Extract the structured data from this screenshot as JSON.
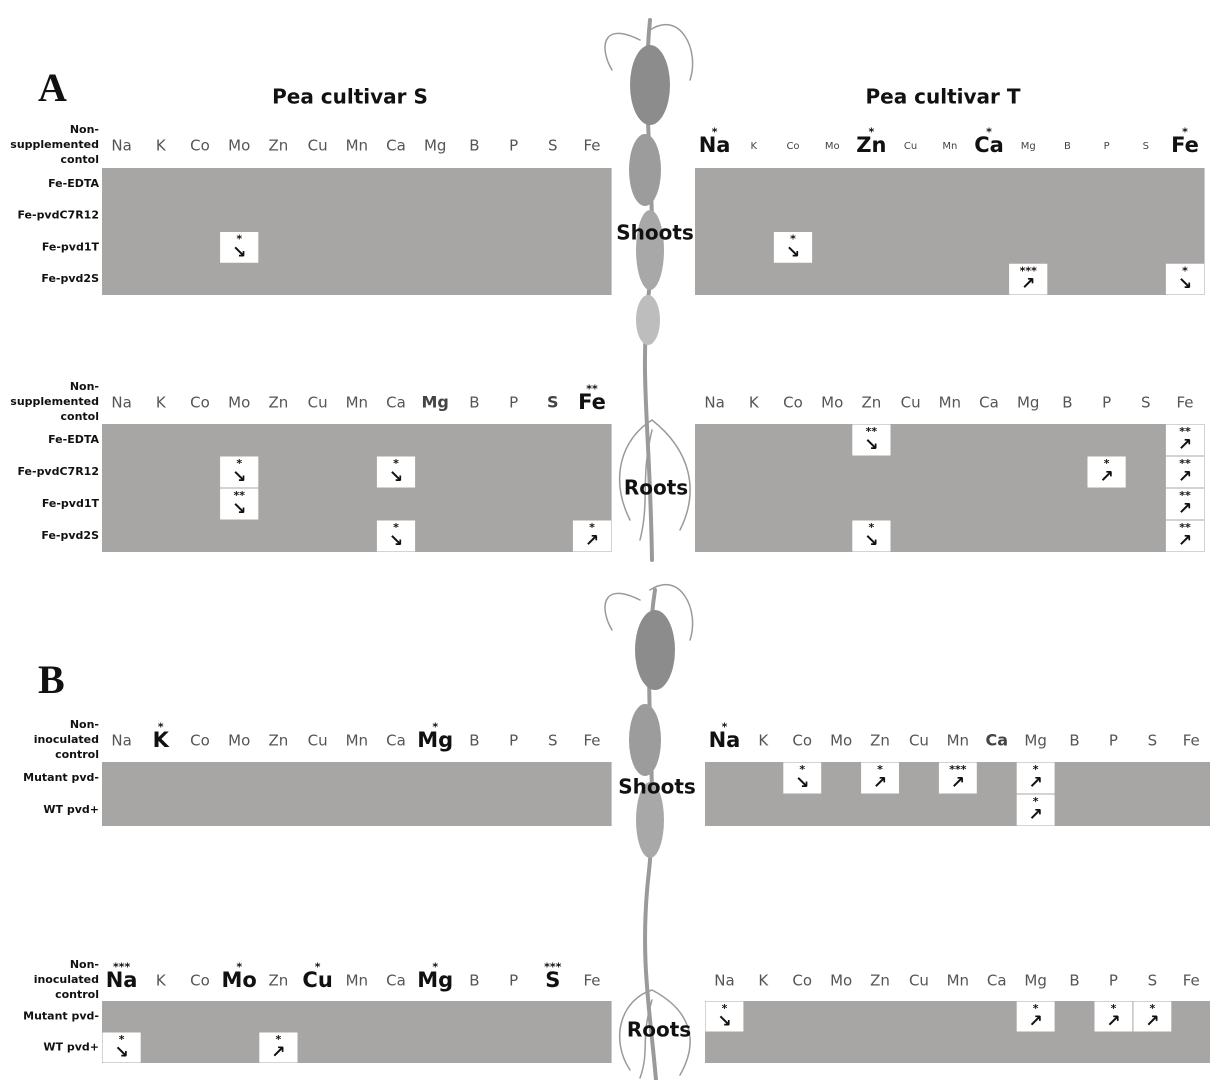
{
  "panels": [
    {
      "letter": "A",
      "titles": [
        "Pea cultivar S",
        "Pea cultivar T"
      ],
      "blocks": [
        {
          "organ": "Shoots",
          "control": [
            "Non-",
            "supplemented",
            "contol"
          ],
          "rows": [
            "Fe-EDTA",
            "Fe-pvdC7R12",
            "Fe-pvd1T",
            "Fe-pvd2S"
          ],
          "grids": [
            {
              "elements": [
                "Na",
                "K",
                "Co",
                "Mo",
                "Zn",
                "Cu",
                "Mn",
                "Ca",
                "Mg",
                "B",
                "P",
                "S",
                "Fe"
              ],
              "cells": [
                {
                  "row": 2,
                  "col": 3,
                  "arrow": "↘",
                  "stars": "*"
                }
              ]
            },
            {
              "elements": [
                {
                  "name": "Na",
                  "stars": "*",
                  "style": "large"
                },
                {
                  "name": "K",
                  "style": "small"
                },
                {
                  "name": "Co",
                  "style": "small"
                },
                {
                  "name": "Mo",
                  "style": "small"
                },
                {
                  "name": "Zn",
                  "stars": "*",
                  "style": "large"
                },
                {
                  "name": "Cu",
                  "style": "small"
                },
                {
                  "name": "Mn",
                  "style": "small"
                },
                {
                  "name": "Ca",
                  "stars": "*",
                  "style": "large"
                },
                {
                  "name": "Mg",
                  "style": "small"
                },
                {
                  "name": "B",
                  "style": "small"
                },
                {
                  "name": "P",
                  "style": "small"
                },
                {
                  "name": "S",
                  "style": "small"
                },
                {
                  "name": "Fe",
                  "stars": "*",
                  "style": "large"
                }
              ],
              "cells": [
                {
                  "row": 2,
                  "col": 2,
                  "arrow": "↘",
                  "stars": "*"
                },
                {
                  "row": 3,
                  "col": 8,
                  "arrow": "↗",
                  "stars": "***"
                },
                {
                  "row": 3,
                  "col": 12,
                  "arrow": "↘",
                  "stars": "*"
                }
              ]
            }
          ]
        },
        {
          "organ": "Roots",
          "control": [
            "Non-",
            "supplemented",
            "contol"
          ],
          "rows": [
            "Fe-EDTA",
            "Fe-pvdC7R12",
            "Fe-pvd1T",
            "Fe-pvd2S"
          ],
          "grids": [
            {
              "elements": [
                "Na",
                "K",
                "Co",
                "Mo",
                "Zn",
                "Cu",
                "Mn",
                "Ca",
                {
                  "name": "Mg",
                  "style": "bold"
                },
                "B",
                "P",
                {
                  "name": "S",
                  "style": "bold"
                },
                {
                  "name": "Fe",
                  "stars": "**",
                  "style": "large"
                }
              ],
              "cells": [
                {
                  "row": 1,
                  "col": 3,
                  "arrow": "↘",
                  "stars": "*"
                },
                {
                  "row": 1,
                  "col": 7,
                  "arrow": "↘",
                  "stars": "*"
                },
                {
                  "row": 2,
                  "col": 3,
                  "arrow": "↘",
                  "stars": "**"
                },
                {
                  "row": 3,
                  "col": 7,
                  "arrow": "↘",
                  "stars": "*"
                },
                {
                  "row": 3,
                  "col": 12,
                  "arrow": "↗",
                  "stars": "*"
                }
              ]
            },
            {
              "elements": [
                "Na",
                "K",
                "Co",
                "Mo",
                "Zn",
                "Cu",
                "Mn",
                "Ca",
                "Mg",
                "B",
                "P",
                "S",
                "Fe"
              ],
              "cells": [
                {
                  "row": 0,
                  "col": 4,
                  "arrow": "↘",
                  "stars": "**"
                },
                {
                  "row": 0,
                  "col": 12,
                  "arrow": "↗",
                  "stars": "**"
                },
                {
                  "row": 1,
                  "col": 10,
                  "arrow": "↗",
                  "stars": "*"
                },
                {
                  "row": 1,
                  "col": 12,
                  "arrow": "↗",
                  "stars": "**"
                },
                {
                  "row": 2,
                  "col": 12,
                  "arrow": "↗",
                  "stars": "**"
                },
                {
                  "row": 3,
                  "col": 4,
                  "arrow": "↘",
                  "stars": "*"
                },
                {
                  "row": 3,
                  "col": 12,
                  "arrow": "↗",
                  "stars": "**"
                }
              ]
            }
          ]
        }
      ]
    },
    {
      "letter": "B",
      "blocks": [
        {
          "organ": "Shoots",
          "control": [
            "Non-",
            "inoculated",
            "control"
          ],
          "rows": [
            "Mutant pvd-",
            "WT pvd+"
          ],
          "grids": [
            {
              "elements": [
                "Na",
                {
                  "name": "K",
                  "stars": "*",
                  "style": "large"
                },
                "Co",
                "Mo",
                "Zn",
                "Cu",
                "Mn",
                "Ca",
                {
                  "name": "Mg",
                  "stars": "*",
                  "style": "large"
                },
                "B",
                "P",
                "S",
                "Fe"
              ],
              "cells": []
            },
            {
              "elements": [
                {
                  "name": "Na",
                  "stars": "*",
                  "style": "large"
                },
                "K",
                "Co",
                "Mo",
                "Zn",
                "Cu",
                "Mn",
                {
                  "name": "Ca",
                  "style": "bold"
                },
                "Mg",
                "B",
                "P",
                "S",
                "Fe"
              ],
              "cells": [
                {
                  "row": 0,
                  "col": 2,
                  "arrow": "↘",
                  "stars": "*"
                },
                {
                  "row": 0,
                  "col": 4,
                  "arrow": "↗",
                  "stars": "*"
                },
                {
                  "row": 0,
                  "col": 6,
                  "arrow": "↗",
                  "stars": "***"
                },
                {
                  "row": 0,
                  "col": 8,
                  "arrow": "↗",
                  "stars": "*"
                },
                {
                  "row": 1,
                  "col": 8,
                  "arrow": "↗",
                  "stars": "*"
                }
              ]
            }
          ]
        },
        {
          "organ": "Roots",
          "control": [
            "Non-",
            "inoculated",
            "control"
          ],
          "rows": [
            "Mutant pvd-",
            "WT pvd+"
          ],
          "grids": [
            {
              "elements": [
                {
                  "name": "Na",
                  "stars": "***",
                  "style": "large"
                },
                "K",
                "Co",
                {
                  "name": "Mo",
                  "stars": "*",
                  "style": "large"
                },
                "Zn",
                {
                  "name": "Cu",
                  "stars": "*",
                  "style": "large"
                },
                "Mn",
                "Ca",
                {
                  "name": "Mg",
                  "stars": "*",
                  "style": "large"
                },
                "B",
                "P",
                {
                  "name": "S",
                  "stars": "***",
                  "style": "large"
                },
                "Fe"
              ],
              "cells": [
                {
                  "row": 1,
                  "col": 0,
                  "arrow": "↘",
                  "stars": "*"
                },
                {
                  "row": 1,
                  "col": 4,
                  "arrow": "↗",
                  "stars": "*"
                }
              ]
            },
            {
              "elements": [
                "Na",
                "K",
                "Co",
                "Mo",
                "Zn",
                "Cu",
                "Mn",
                "Ca",
                "Mg",
                "B",
                "P",
                "S",
                "Fe"
              ],
              "cells": [
                {
                  "row": 0,
                  "col": 0,
                  "arrow": "↘",
                  "stars": "*"
                },
                {
                  "row": 0,
                  "col": 8,
                  "arrow": "↗",
                  "stars": "*"
                },
                {
                  "row": 0,
                  "col": 10,
                  "arrow": "↗",
                  "stars": "*"
                },
                {
                  "row": 0,
                  "col": 11,
                  "arrow": "↗",
                  "stars": "*"
                }
              ]
            }
          ]
        }
      ]
    }
  ]
}
